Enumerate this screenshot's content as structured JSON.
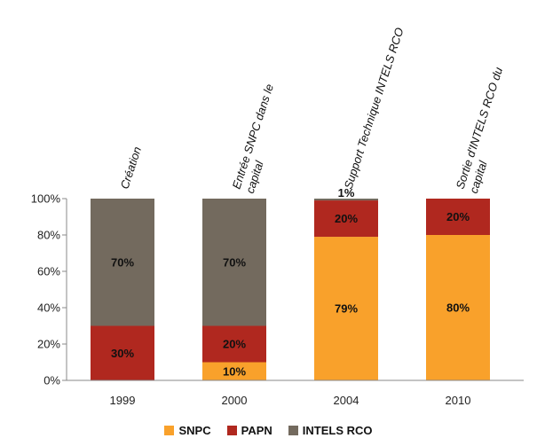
{
  "chart_data": {
    "type": "bar",
    "stacked": true,
    "categories": [
      "1999",
      "2000",
      "2004",
      "2010"
    ],
    "series": [
      {
        "name": "SNPC",
        "color": "#f9a12b",
        "values": [
          0,
          10,
          79,
          80
        ]
      },
      {
        "name": "PAPN",
        "color": "#b0281f",
        "values": [
          30,
          20,
          20,
          20
        ]
      },
      {
        "name": "INTELS RCO",
        "color": "#736a5e",
        "values": [
          70,
          70,
          1,
          0
        ]
      }
    ],
    "value_labels": [
      [
        "",
        "30%",
        "70%"
      ],
      [
        "10%",
        "20%",
        "70%"
      ],
      [
        "79%",
        "20%",
        "1%"
      ],
      [
        "80%",
        "20%",
        ""
      ]
    ],
    "annotations": [
      [
        "Création"
      ],
      [
        "Entrée SNPC dans le",
        "capital"
      ],
      [
        "Support Technique INTELS RCO"
      ],
      [
        "Sortie d'INTELS RCO du",
        "capital"
      ]
    ],
    "yticks": [
      "0%",
      "20%",
      "40%",
      "60%",
      "80%",
      "100%"
    ],
    "ylim": [
      0,
      100
    ],
    "legend_position": "bottom",
    "grid": false
  }
}
